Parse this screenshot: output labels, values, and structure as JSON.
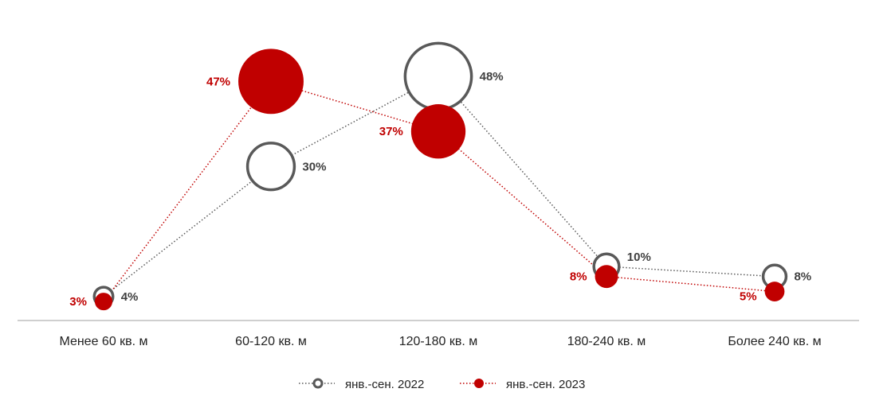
{
  "chart_data": {
    "type": "scatter",
    "categories": [
      "Менее 60 кв. м",
      "60-120 кв. м",
      "120-180 кв. м",
      "180-240 кв. м",
      "Более 240 кв. м"
    ],
    "series": [
      {
        "name": "янв.-сен. 2022",
        "values": [
          4,
          30,
          48,
          10,
          8
        ],
        "labels": [
          "4%",
          "30%",
          "48%",
          "10%",
          "8%"
        ],
        "color": "#595959",
        "marker": "hollow-circle",
        "line": "dotted"
      },
      {
        "name": "янв.-сен. 2023",
        "values": [
          3,
          47,
          37,
          8,
          5
        ],
        "labels": [
          "3%",
          "47%",
          "37%",
          "8%",
          "5%"
        ],
        "color": "#c00000",
        "marker": "filled-circle",
        "line": "dotted"
      }
    ],
    "bubble_size_by_value": true,
    "ylim": [
      0,
      55
    ],
    "grid": false,
    "legend": "bottom-center",
    "title": "",
    "xlabel": "",
    "ylabel": ""
  }
}
